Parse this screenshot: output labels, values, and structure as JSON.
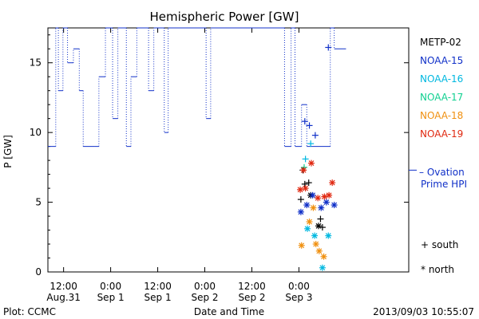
{
  "chart_data": {
    "type": "scatter",
    "title": "Hemispheric Power [GW]",
    "xlabel": "Date and Time",
    "ylabel": "P [GW]",
    "ylim": [
      0,
      17.5
    ],
    "xlim": [
      "2013-08-31T08:00",
      "2013-09-04T04:00"
    ],
    "yticks": [
      0,
      5,
      10,
      15
    ],
    "xticks": [
      {
        "t": "2013-08-31T12:00",
        "line1": "12:00",
        "line2": "Aug.31"
      },
      {
        "t": "2013-09-01T00:00",
        "line1": "0:00",
        "line2": "Sep 1"
      },
      {
        "t": "2013-09-01T12:00",
        "line1": "12:00",
        "line2": "Sep 1"
      },
      {
        "t": "2013-09-02T00:00",
        "line1": "0:00",
        "line2": "Sep 2"
      },
      {
        "t": "2013-09-02T12:00",
        "line1": "12:00",
        "line2": "Sep 2"
      },
      {
        "t": "2013-09-03T00:00",
        "line1": "0:00",
        "line2": "Sep 3"
      }
    ],
    "legend": {
      "placement": "right",
      "entries": [
        {
          "name": "METP-02",
          "color": "#000000"
        },
        {
          "name": "NOAA-15",
          "color": "#1030c8"
        },
        {
          "name": "NOAA-16",
          "color": "#00b8e0"
        },
        {
          "name": "NOAA-17",
          "color": "#10d090"
        },
        {
          "name": "NOAA-18",
          "color": "#f09010"
        },
        {
          "name": "NOAA-19",
          "color": "#e02810"
        }
      ]
    },
    "ovation": {
      "label_line1": "– Ovation",
      "label_line2": "Prime HPI",
      "color": "#1030c8",
      "value": 7.3
    },
    "markers": {
      "south": "+ south",
      "north": "* north"
    },
    "step_series": {
      "name": "Ovation Prime HPI",
      "color": "#1030c8",
      "points": [
        [
          "2013-08-31T08:00",
          9.0
        ],
        [
          "2013-08-31T10:00",
          17.5
        ],
        [
          "2013-08-31T10:40",
          13.0
        ],
        [
          "2013-08-31T11:50",
          17.5
        ],
        [
          "2013-08-31T13:00",
          15.0
        ],
        [
          "2013-08-31T14:30",
          16.0
        ],
        [
          "2013-08-31T16:00",
          13.0
        ],
        [
          "2013-08-31T17:00",
          9.0
        ],
        [
          "2013-08-31T20:00",
          9.0
        ],
        [
          "2013-08-31T21:00",
          14.0
        ],
        [
          "2013-08-31T22:40",
          17.5
        ],
        [
          "2013-09-01T00:30",
          11.0
        ],
        [
          "2013-09-01T01:50",
          17.5
        ],
        [
          "2013-09-01T04:00",
          9.0
        ],
        [
          "2013-09-01T05:10",
          14.0
        ],
        [
          "2013-09-01T06:40",
          17.5
        ],
        [
          "2013-09-01T09:40",
          13.0
        ],
        [
          "2013-09-01T11:00",
          17.5
        ],
        [
          "2013-09-01T13:40",
          10.0
        ],
        [
          "2013-09-01T14:40",
          17.5
        ],
        [
          "2013-09-02T00:20",
          11.0
        ],
        [
          "2013-09-02T01:30",
          17.5
        ],
        [
          "2013-09-02T20:20",
          9.0
        ],
        [
          "2013-09-02T22:00",
          17.5
        ],
        [
          "2013-09-02T23:00",
          9.0
        ],
        [
          "2013-09-03T00:40",
          12.0
        ],
        [
          "2013-09-03T02:00",
          9.0
        ],
        [
          "2013-09-03T08:00",
          17.5
        ],
        [
          "2013-09-03T09:00",
          16.0
        ],
        [
          "2013-09-03T12:00",
          16.0
        ]
      ],
      "step_dashed": [
        [
          "2013-09-03T01:50",
          9.0,
          10.0
        ],
        [
          "2013-09-03T01:00",
          10.0,
          9.0
        ]
      ]
    },
    "series": [
      {
        "name": "METP-02",
        "color": "#000000",
        "points": [
          {
            "t": "2013-09-03T01:00",
            "y": 7.3,
            "m": "+"
          },
          {
            "t": "2013-09-03T01:30",
            "y": 6.3,
            "m": "+"
          },
          {
            "t": "2013-09-03T02:30",
            "y": 6.4,
            "m": "+"
          },
          {
            "t": "2013-09-03T00:30",
            "y": 5.2,
            "m": "+"
          },
          {
            "t": "2013-09-03T03:00",
            "y": 5.5,
            "m": "*"
          },
          {
            "t": "2013-09-03T05:30",
            "y": 3.8,
            "m": "+"
          },
          {
            "t": "2013-09-03T06:00",
            "y": 3.2,
            "m": "+"
          },
          {
            "t": "2013-09-03T05:00",
            "y": 3.3,
            "m": "*"
          }
        ]
      },
      {
        "name": "NOAA-15",
        "color": "#1030c8",
        "points": [
          {
            "t": "2013-09-03T01:30",
            "y": 10.8,
            "m": "+"
          },
          {
            "t": "2013-09-03T02:40",
            "y": 10.5,
            "m": "+"
          },
          {
            "t": "2013-09-03T04:10",
            "y": 9.8,
            "m": "+"
          },
          {
            "t": "2013-09-03T07:30",
            "y": 16.1,
            "m": "+"
          },
          {
            "t": "2013-09-03T00:30",
            "y": 4.3,
            "m": "*"
          },
          {
            "t": "2013-09-03T02:00",
            "y": 4.8,
            "m": "*"
          },
          {
            "t": "2013-09-03T03:30",
            "y": 5.5,
            "m": "*"
          },
          {
            "t": "2013-09-03T05:40",
            "y": 4.6,
            "m": "*"
          },
          {
            "t": "2013-09-03T07:00",
            "y": 5.0,
            "m": "*"
          },
          {
            "t": "2013-09-03T09:00",
            "y": 4.8,
            "m": "*"
          }
        ]
      },
      {
        "name": "NOAA-16",
        "color": "#00b8e0",
        "points": [
          {
            "t": "2013-09-03T01:40",
            "y": 8.1,
            "m": "+"
          },
          {
            "t": "2013-09-03T03:00",
            "y": 9.2,
            "m": "+"
          },
          {
            "t": "2013-09-03T02:10",
            "y": 3.1,
            "m": "*"
          },
          {
            "t": "2013-09-03T04:00",
            "y": 2.6,
            "m": "*"
          },
          {
            "t": "2013-09-03T06:00",
            "y": 0.3,
            "m": "*"
          },
          {
            "t": "2013-09-03T07:30",
            "y": 2.6,
            "m": "*"
          }
        ]
      },
      {
        "name": "NOAA-17",
        "color": "#10d090",
        "points": [
          {
            "t": "2013-09-03T01:20",
            "y": 7.5,
            "m": "+"
          }
        ]
      },
      {
        "name": "NOAA-18",
        "color": "#f09010",
        "points": [
          {
            "t": "2013-09-03T00:40",
            "y": 1.9,
            "m": "*"
          },
          {
            "t": "2013-09-03T02:40",
            "y": 3.6,
            "m": "*"
          },
          {
            "t": "2013-09-03T04:20",
            "y": 2.0,
            "m": "*"
          },
          {
            "t": "2013-09-03T05:10",
            "y": 1.5,
            "m": "*"
          },
          {
            "t": "2013-09-03T06:20",
            "y": 1.1,
            "m": "*"
          },
          {
            "t": "2013-09-03T03:40",
            "y": 4.6,
            "m": "*"
          }
        ]
      },
      {
        "name": "NOAA-19",
        "color": "#e02810",
        "points": [
          {
            "t": "2013-09-03T00:20",
            "y": 5.9,
            "m": "*"
          },
          {
            "t": "2013-09-03T01:40",
            "y": 6.0,
            "m": "*"
          },
          {
            "t": "2013-09-03T01:10",
            "y": 7.3,
            "m": "*"
          },
          {
            "t": "2013-09-03T03:10",
            "y": 7.8,
            "m": "*"
          },
          {
            "t": "2013-09-03T04:50",
            "y": 5.3,
            "m": "*"
          },
          {
            "t": "2013-09-03T06:30",
            "y": 5.4,
            "m": "*"
          },
          {
            "t": "2013-09-03T07:40",
            "y": 5.5,
            "m": "*"
          },
          {
            "t": "2013-09-03T08:30",
            "y": 6.4,
            "m": "*"
          }
        ]
      }
    ]
  },
  "footer": {
    "plot_credit": "Plot: CCMC",
    "timestamp": "2013/09/03 10:55:07"
  }
}
